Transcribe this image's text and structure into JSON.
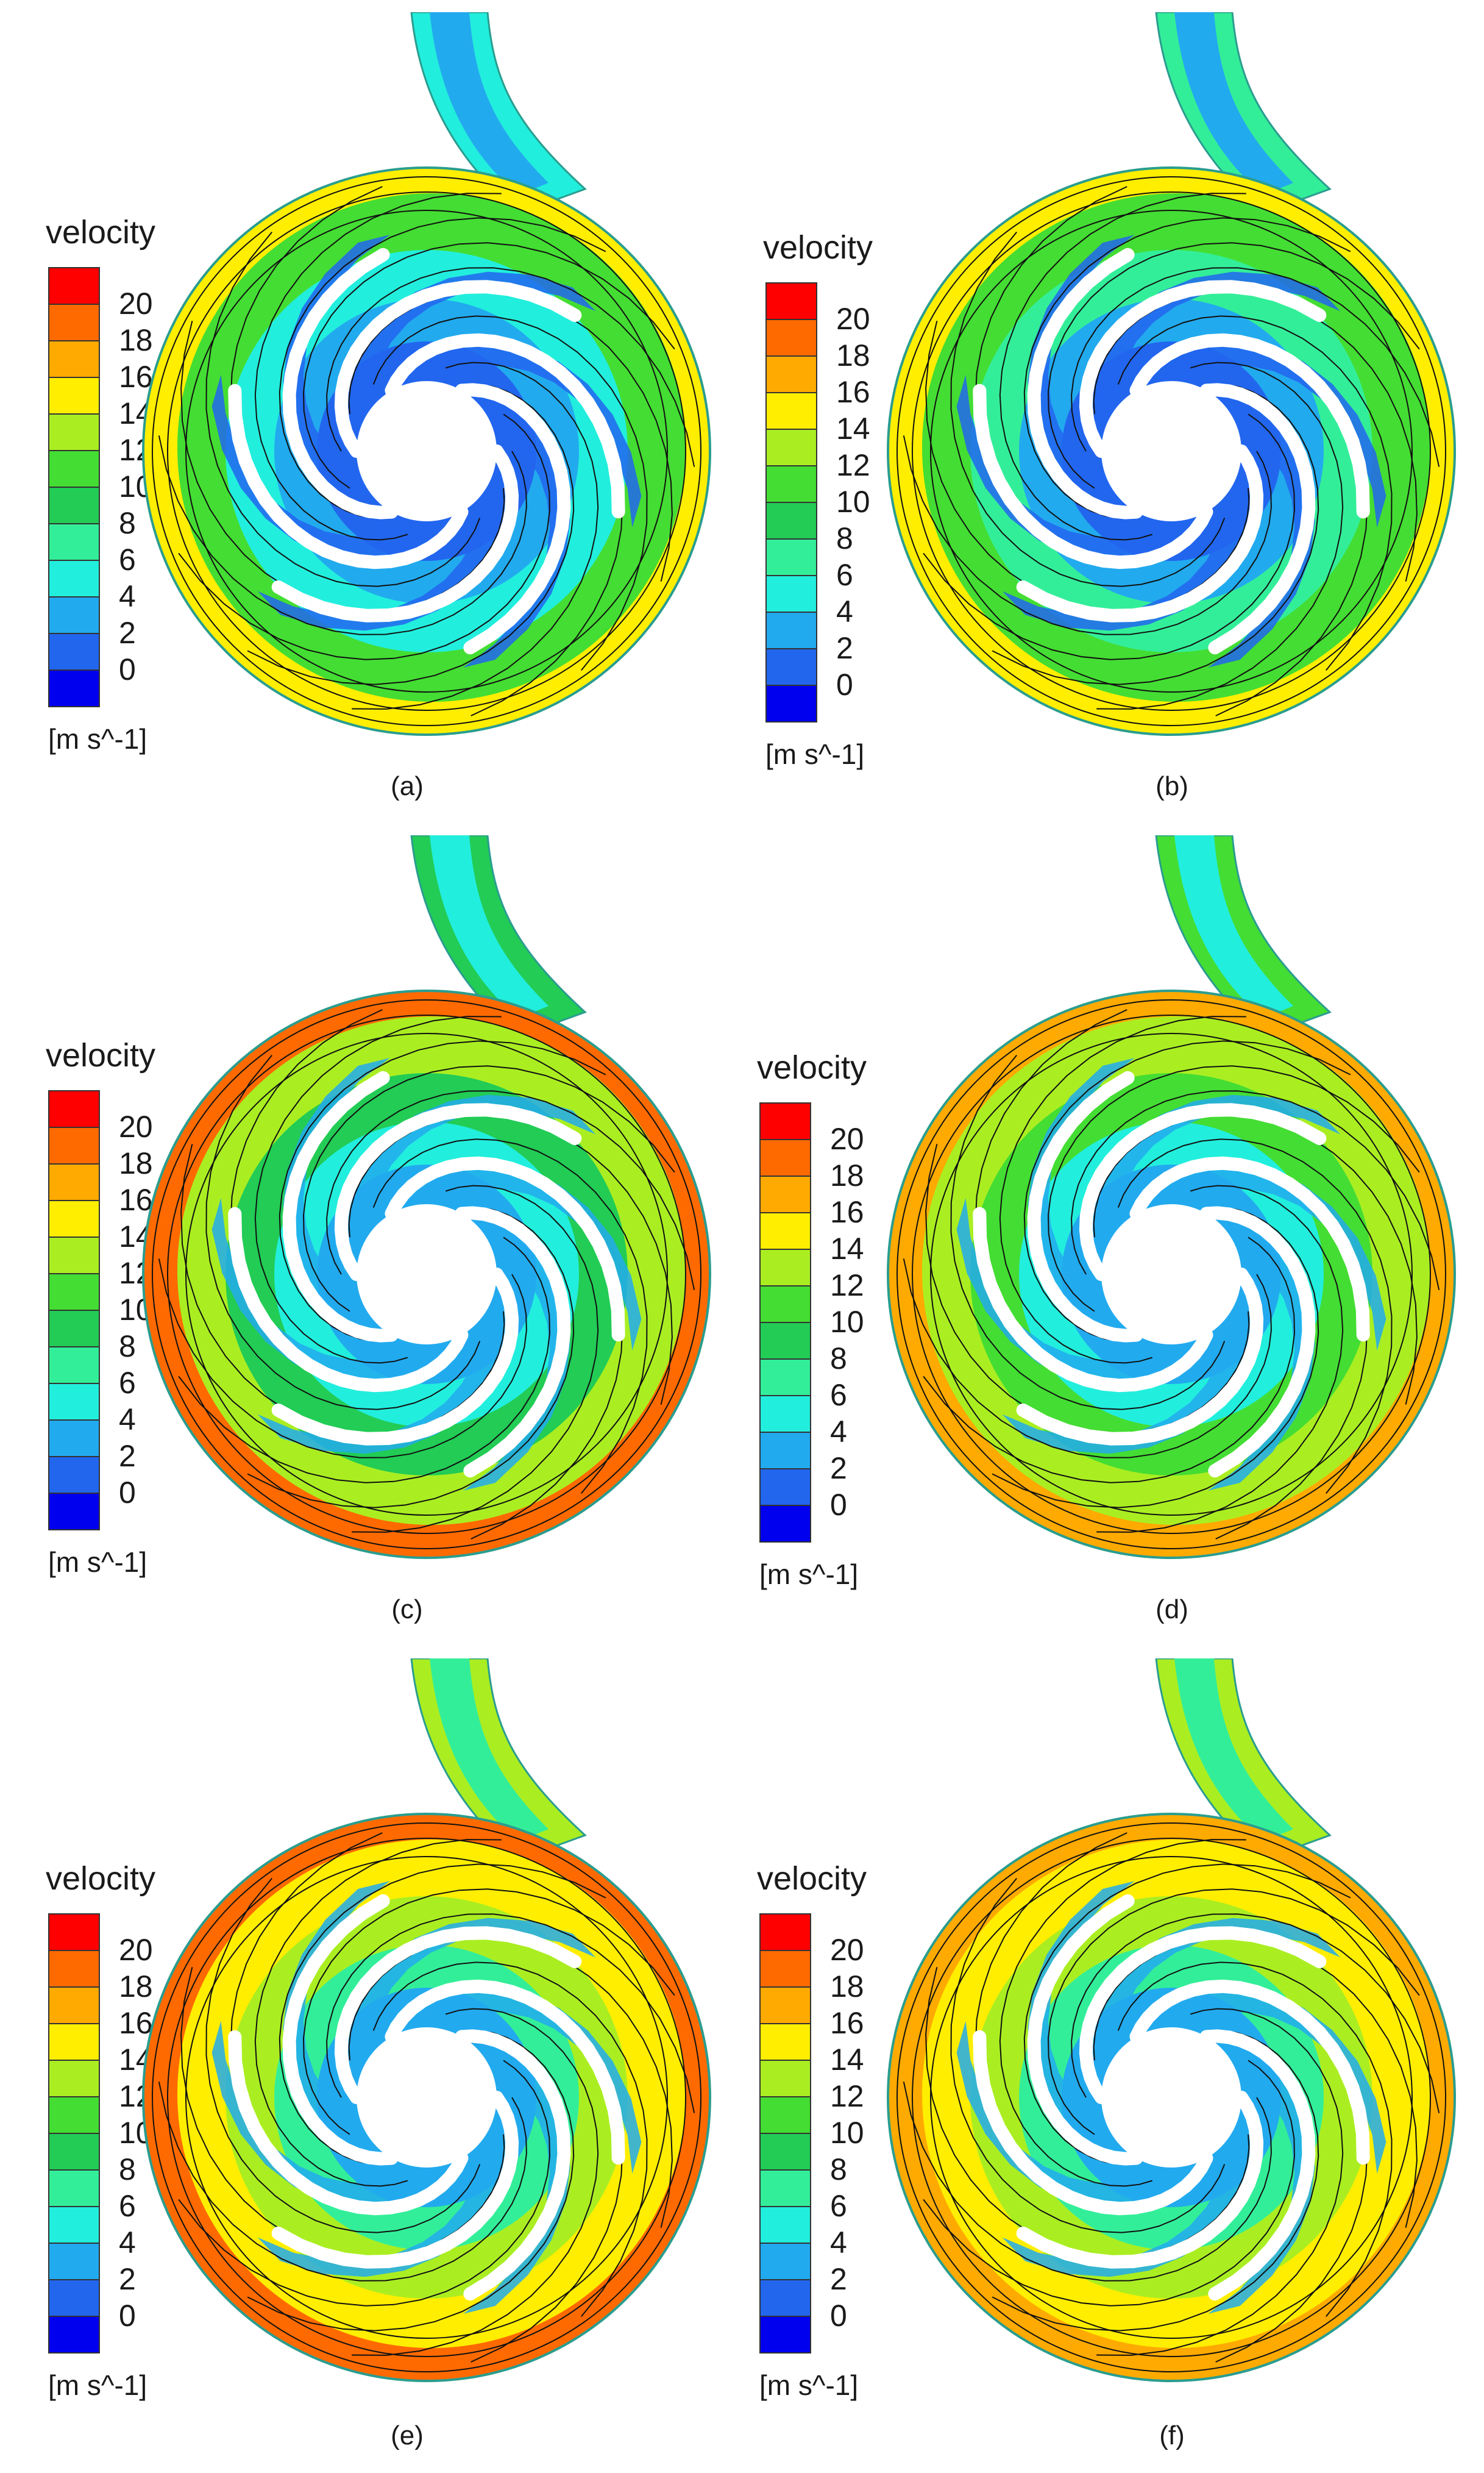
{
  "colorbar": {
    "title": "velocity",
    "units": "[m s^-1]",
    "ticks": [
      "20",
      "18",
      "16",
      "14",
      "12",
      "10",
      "8",
      "6",
      "4",
      "2",
      "0"
    ],
    "colors": [
      "#ff0000",
      "#ff6a00",
      "#ffaa00",
      "#ffee00",
      "#aaee22",
      "#44dd33",
      "#22cc55",
      "#33ee99",
      "#22eedd",
      "#22aaee",
      "#2266ee",
      "#0000ee"
    ]
  },
  "panels": [
    {
      "caption": "(a)",
      "field": [
        1,
        3,
        6,
        11,
        15
      ]
    },
    {
      "caption": "(b)",
      "field": [
        2,
        4,
        8,
        12,
        16
      ]
    },
    {
      "caption": "(c)",
      "field": [
        3,
        6,
        10,
        13,
        19
      ]
    },
    {
      "caption": "(d)",
      "field": [
        3,
        6,
        11,
        14,
        18
      ]
    },
    {
      "caption": "(e)",
      "field": [
        4,
        8,
        13,
        16,
        20
      ]
    },
    {
      "caption": "(f)",
      "field": [
        4,
        8,
        13,
        16,
        18
      ]
    }
  ]
}
